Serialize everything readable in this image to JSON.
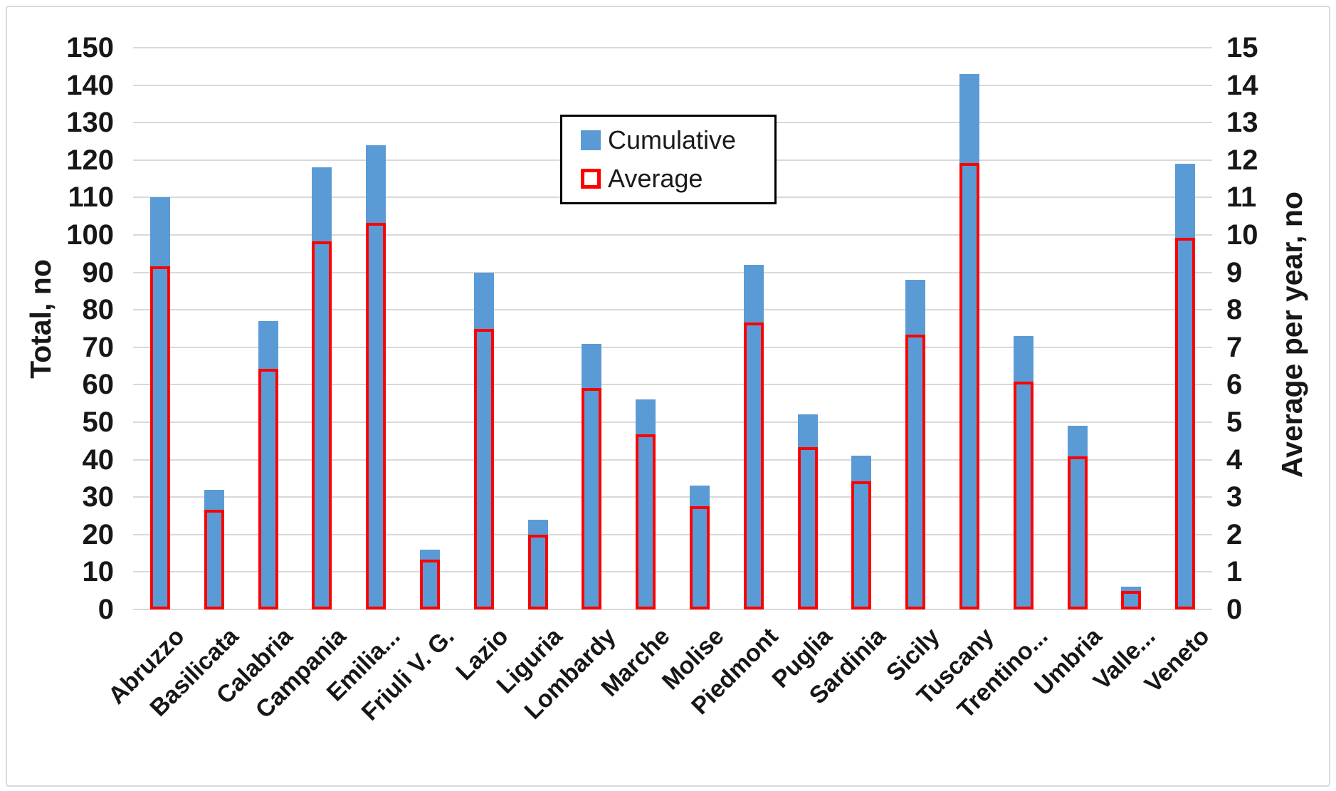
{
  "chart_data": {
    "type": "bar",
    "title": "",
    "categories": [
      "Abruzzo",
      "Basilicata",
      "Calabria",
      "Campania",
      "Emilia...",
      "Friuli V. G.",
      "Lazio",
      "Liguria",
      "Lombardy",
      "Marche",
      "Molise",
      "Piedmont",
      "Puglia",
      "Sardinia",
      "Sicily",
      "Tuscany",
      "Trentino...",
      "Umbria",
      "Valle...",
      "Veneto"
    ],
    "series": [
      {
        "name": "Cumulative",
        "axis": "left",
        "values": [
          110,
          32,
          77,
          118,
          124,
          16,
          90,
          24,
          71,
          56,
          33,
          92,
          52,
          41,
          88,
          143,
          73,
          49,
          6,
          119
        ]
      },
      {
        "name": "Average",
        "axis": "right",
        "values": [
          9.17,
          2.67,
          6.42,
          9.83,
          10.33,
          1.33,
          7.5,
          2.0,
          5.92,
          4.67,
          2.75,
          7.67,
          4.33,
          3.42,
          7.33,
          11.92,
          6.08,
          4.08,
          0.5,
          9.92
        ]
      }
    ],
    "left_axis": {
      "label": "Total, no",
      "min": 0,
      "max": 150,
      "step": 10
    },
    "right_axis": {
      "label": "Average per year, no",
      "min": 0,
      "max": 15,
      "step": 1
    },
    "legend": {
      "position": "top-center",
      "entries": [
        "Cumulative",
        "Average"
      ]
    },
    "colors": {
      "cumulative_fill": "#5b9bd5",
      "average_stroke": "#ff0000",
      "gridline": "#d9d9d9"
    },
    "grid": "horizontal-on"
  }
}
